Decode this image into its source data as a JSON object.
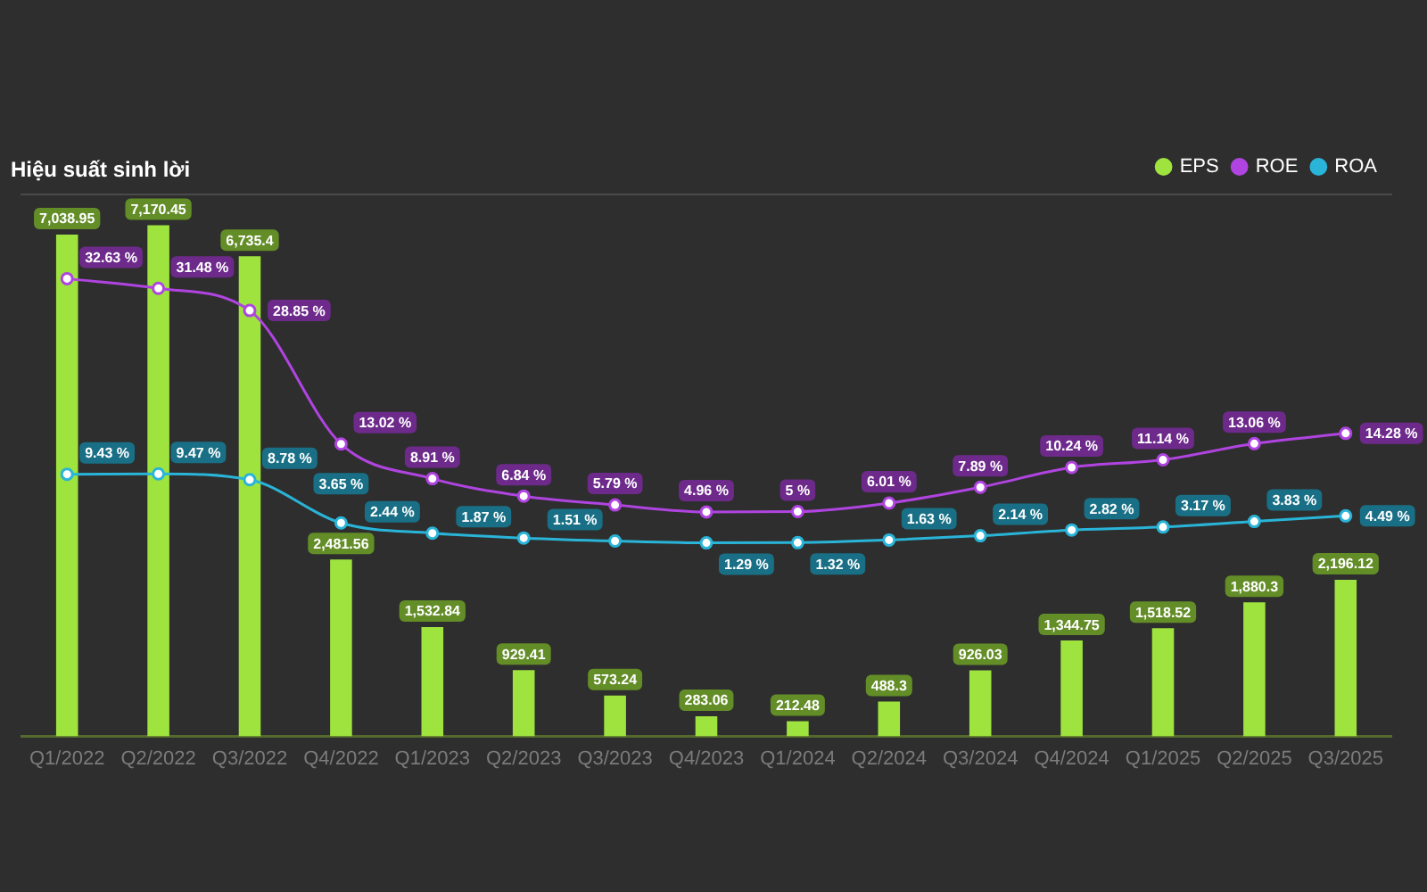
{
  "chart_data": {
    "type": "bar",
    "title": "Hiệu suất sinh lời",
    "categories": [
      "Q1/2022",
      "Q2/2022",
      "Q3/2022",
      "Q4/2022",
      "Q1/2023",
      "Q2/2023",
      "Q3/2023",
      "Q4/2023",
      "Q1/2024",
      "Q2/2024",
      "Q3/2024",
      "Q4/2024",
      "Q1/2025",
      "Q2/2025",
      "Q3/2025"
    ],
    "series": [
      {
        "name": "EPS",
        "color": "#9fe33f",
        "values": [
          7038.95,
          7170.45,
          6735.4,
          2481.56,
          1532.84,
          929.41,
          573.24,
          283.06,
          212.48,
          488.3,
          926.03,
          1344.75,
          1518.52,
          1880.3,
          2196.12
        ],
        "value_labels": [
          "7,038.95",
          "7,170.45",
          "6,735.4",
          "2,481.56",
          "1,532.84",
          "929.41",
          "573.24",
          "283.06",
          "212.48",
          "488.3",
          "926.03",
          "1,344.75",
          "1,518.52",
          "1,880.3",
          "2,196.12"
        ]
      },
      {
        "name": "ROE",
        "type": "line",
        "axis": "y2",
        "color": "#b044e0",
        "values": [
          32.63,
          31.48,
          28.85,
          13.02,
          8.91,
          6.84,
          5.79,
          4.96,
          5,
          6.01,
          7.89,
          10.24,
          11.14,
          13.06,
          14.28
        ],
        "value_labels": [
          "32.63 %",
          "31.48 %",
          "28.85 %",
          "13.02 %",
          "8.91 %",
          "6.84 %",
          "5.79 %",
          "4.96 %",
          "5 %",
          "6.01 %",
          "7.89 %",
          "10.24 %",
          "11.14 %",
          "13.06 %",
          "14.28 %"
        ]
      },
      {
        "name": "ROA",
        "type": "line",
        "axis": "y2",
        "color": "#29b4d8",
        "values": [
          9.43,
          9.47,
          8.78,
          3.65,
          2.44,
          1.87,
          1.51,
          1.29,
          1.32,
          1.63,
          2.14,
          2.82,
          3.17,
          3.83,
          4.49
        ],
        "value_labels": [
          "9.43 %",
          "9.47 %",
          "8.78 %",
          "3.65 %",
          "2.44 %",
          "1.87 %",
          "1.51 %",
          "1.29 %",
          "1.32 %",
          "1.63 %",
          "2.14 %",
          "2.82 %",
          "3.17 %",
          "3.83 %",
          "4.49 %"
        ]
      }
    ],
    "legend": "top right",
    "marker": "circle",
    "tick_labels": "x"
  }
}
